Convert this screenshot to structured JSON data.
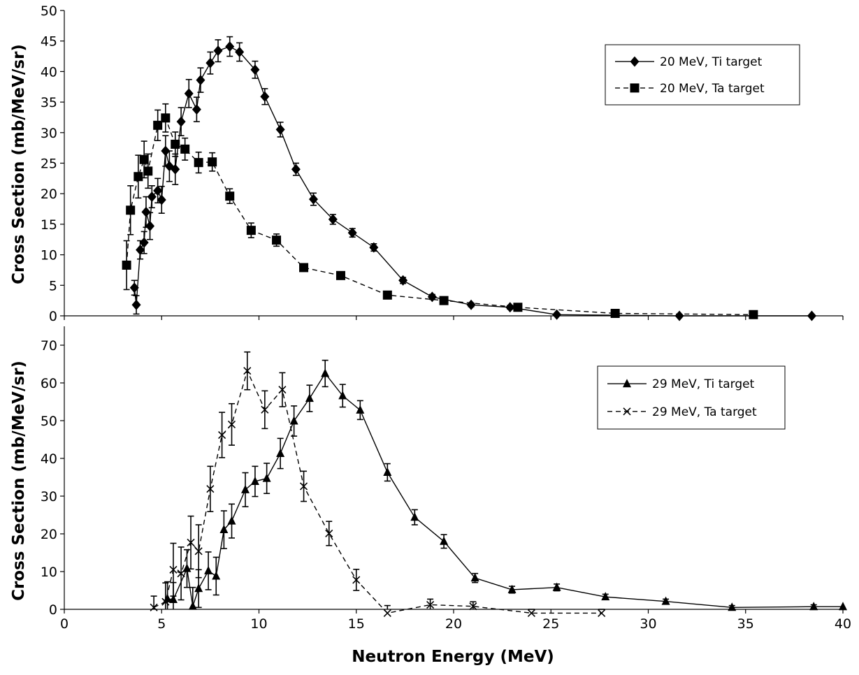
{
  "chart_data": [
    {
      "type": "line",
      "title": "",
      "xlabel": "",
      "ylabel": "Cross Section (mb/MeV/sr)",
      "xlim": [
        0,
        40
      ],
      "ylim": [
        0,
        50
      ],
      "yticks": [
        "0",
        "5",
        "10",
        "15",
        "20",
        "25",
        "30",
        "35",
        "40",
        "45",
        "50"
      ],
      "grid": false,
      "legend": "top-right",
      "series": [
        {
          "name": "20 MeV, Ti target",
          "marker": "diamond",
          "line": "solid",
          "color": "#000000",
          "points": [
            [
              3.6,
              4.6
            ],
            [
              3.7,
              1.8
            ],
            [
              3.9,
              10.8
            ],
            [
              4.1,
              12
            ],
            [
              4.2,
              17
            ],
            [
              4.4,
              14.7
            ],
            [
              4.5,
              19.5
            ],
            [
              4.8,
              20.5
            ],
            [
              5.0,
              19
            ],
            [
              5.2,
              27
            ],
            [
              5.4,
              24.5
            ],
            [
              5.7,
              24
            ],
            [
              6.0,
              31.8
            ],
            [
              6.4,
              36.4
            ],
            [
              6.8,
              33.8
            ],
            [
              7.0,
              38.6
            ],
            [
              7.5,
              41.4
            ],
            [
              7.9,
              43.4
            ],
            [
              8.5,
              44.1
            ],
            [
              9.0,
              43.2
            ],
            [
              9.8,
              40.3
            ],
            [
              10.3,
              35.9
            ],
            [
              11.1,
              30.5
            ],
            [
              11.9,
              24
            ],
            [
              12.8,
              19.1
            ],
            [
              13.8,
              15.8
            ],
            [
              14.8,
              13.6
            ],
            [
              15.9,
              11.2
            ],
            [
              17.4,
              5.8
            ],
            [
              18.9,
              3.1
            ],
            [
              20.9,
              1.8
            ],
            [
              22.9,
              1.4
            ],
            [
              25.3,
              0.2
            ],
            [
              31.6,
              0
            ],
            [
              38.4,
              0
            ]
          ],
          "errors": [
            1.2,
            1.5,
            1.5,
            1.8,
            2.5,
            2.2,
            1.8,
            2.0,
            2.2,
            2.5,
            2.5,
            2.5,
            2.3,
            2.3,
            2.0,
            2.0,
            1.8,
            1.8,
            1.6,
            1.5,
            1.4,
            1.3,
            1.2,
            1.0,
            1.0,
            0.8,
            0.7,
            0.6,
            0.5,
            0.4,
            0.3,
            0.3,
            0.2,
            0.2,
            0.2
          ]
        },
        {
          "name": "20 MeV, Ta target",
          "marker": "square",
          "line": "dashed",
          "color": "#000000",
          "points": [
            [
              3.2,
              8.3
            ],
            [
              3.4,
              17.3
            ],
            [
              3.8,
              22.8
            ],
            [
              4.1,
              25.6
            ],
            [
              4.3,
              23.7
            ],
            [
              4.8,
              31.2
            ],
            [
              5.2,
              32.4
            ],
            [
              5.7,
              28.1
            ],
            [
              6.2,
              27.3
            ],
            [
              6.9,
              25.1
            ],
            [
              7.6,
              25.2
            ],
            [
              8.5,
              19.6
            ],
            [
              9.6,
              14
            ],
            [
              10.9,
              12.4
            ],
            [
              12.3,
              7.9
            ],
            [
              14.2,
              6.6
            ],
            [
              16.6,
              3.4
            ],
            [
              19.5,
              2.5
            ],
            [
              23.3,
              1.4
            ],
            [
              28.3,
              0.4
            ],
            [
              35.4,
              0.2
            ]
          ],
          "errors": [
            4.0,
            4.0,
            3.5,
            3.0,
            2.8,
            2.5,
            2.3,
            2.0,
            1.8,
            1.7,
            1.5,
            1.2,
            1.2,
            1.0,
            0.6,
            0.5,
            0.4,
            0.3,
            0.3,
            0.2,
            0.2
          ]
        }
      ]
    },
    {
      "type": "line",
      "title": "",
      "xlabel": "Neutron Energy (MeV)",
      "ylabel": "Cross Section (mb/MeV/sr)",
      "xlim": [
        0,
        40
      ],
      "ylim": [
        0,
        75
      ],
      "yticks": [
        "0",
        "10",
        "20",
        "30",
        "40",
        "50",
        "60",
        "70"
      ],
      "xticks": [
        "0",
        "5",
        "10",
        "15",
        "20",
        "25",
        "30",
        "35",
        "40"
      ],
      "grid": false,
      "legend": "top-right",
      "series": [
        {
          "name": "29 MeV, Ti target",
          "marker": "triangle",
          "line": "solid",
          "color": "#000000",
          "points": [
            [
              5.3,
              2.8
            ],
            [
              5.6,
              2.6
            ],
            [
              6.3,
              10.8
            ],
            [
              6.6,
              0.8
            ],
            [
              6.9,
              5.5
            ],
            [
              7.4,
              10.2
            ],
            [
              7.8,
              8.8
            ],
            [
              8.2,
              21.1
            ],
            [
              8.6,
              23.4
            ],
            [
              9.3,
              31.7
            ],
            [
              9.8,
              33.9
            ],
            [
              10.4,
              34.7
            ],
            [
              11.1,
              41.3
            ],
            [
              11.8,
              49.9
            ],
            [
              12.6,
              55.9
            ],
            [
              13.4,
              62.5
            ],
            [
              14.3,
              56.6
            ],
            [
              15.2,
              52.8
            ],
            [
              16.6,
              36.3
            ],
            [
              18.0,
              24.4
            ],
            [
              19.5,
              18
            ],
            [
              21.1,
              8.3
            ],
            [
              23.0,
              5.2
            ],
            [
              25.3,
              5.8
            ],
            [
              27.8,
              3.3
            ],
            [
              30.9,
              2.1
            ],
            [
              34.3,
              0.5
            ],
            [
              38.5,
              0.7
            ],
            [
              40,
              0.7
            ]
          ],
          "errors": [
            4.5,
            4.5,
            5.0,
            5.0,
            5.0,
            5.0,
            5.0,
            5.0,
            4.5,
            4.5,
            4.0,
            4.0,
            4.0,
            4.0,
            3.5,
            3.5,
            3.0,
            2.5,
            2.3,
            2.0,
            1.8,
            1.2,
            0.9,
            0.9,
            0.7,
            0.6,
            0.5,
            0.5,
            0
          ]
        },
        {
          "name": "29 MeV, Ta target",
          "marker": "x",
          "line": "dashed",
          "color": "#000000",
          "points": [
            [
              4.6,
              0.5
            ],
            [
              5.2,
              2.0
            ],
            [
              5.6,
              10.5
            ],
            [
              6.0,
              9.5
            ],
            [
              6.5,
              17.7
            ],
            [
              6.9,
              15.4
            ],
            [
              7.5,
              31.9
            ],
            [
              8.1,
              46.2
            ],
            [
              8.6,
              49
            ],
            [
              9.4,
              63.2
            ],
            [
              10.3,
              52.9
            ],
            [
              11.2,
              58.2
            ],
            [
              12.3,
              32.6
            ],
            [
              13.6,
              20.1
            ],
            [
              15.0,
              7.8
            ],
            [
              16.6,
              -1.0
            ],
            [
              18.8,
              1.2
            ],
            [
              21.0,
              0.8
            ],
            [
              24.0,
              -1.0
            ],
            [
              27.6,
              -1.0
            ]
          ],
          "errors": [
            3.0,
            5.0,
            7.0,
            7.0,
            7.0,
            7.0,
            6.0,
            6.0,
            5.5,
            5.0,
            5.0,
            4.5,
            4.0,
            3.2,
            2.8,
            2.0,
            1.5,
            1.2,
            1.0,
            1.0
          ]
        }
      ]
    }
  ]
}
